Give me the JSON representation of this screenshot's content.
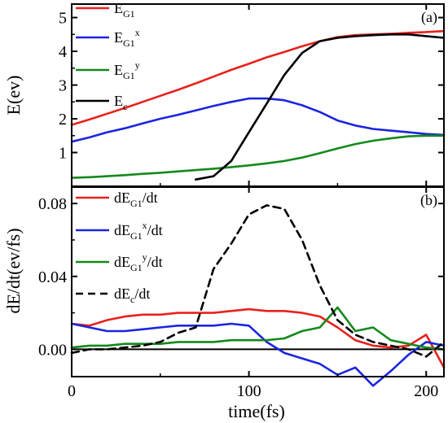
{
  "chart_data": [
    {
      "type": "line",
      "panel_label": "(a)",
      "ylabel": "E(ev)",
      "xlim": [
        0,
        210
      ],
      "ylim": [
        0,
        5.4
      ],
      "yticks": [
        1,
        2,
        3,
        4,
        5
      ],
      "xticks": [
        0,
        100,
        200
      ],
      "x": [
        0,
        10,
        20,
        30,
        40,
        50,
        60,
        70,
        80,
        90,
        100,
        110,
        120,
        130,
        140,
        150,
        160,
        170,
        180,
        190,
        200,
        210
      ],
      "series": [
        {
          "name": "E_G1",
          "label_main": "E",
          "label_sub": "G1",
          "label_sup": "",
          "color": "#e8211c",
          "dash": "",
          "values": [
            1.82,
            1.98,
            2.15,
            2.32,
            2.5,
            2.68,
            2.86,
            3.05,
            3.25,
            3.45,
            3.63,
            3.82,
            3.98,
            4.15,
            4.3,
            4.42,
            4.48,
            4.5,
            4.52,
            4.55,
            4.57,
            4.6
          ]
        },
        {
          "name": "E_G1^x",
          "label_main": "E",
          "label_sub": "G1",
          "label_sup": "x",
          "color": "#1b25e0",
          "dash": "",
          "values": [
            1.32,
            1.45,
            1.6,
            1.72,
            1.86,
            2.0,
            2.12,
            2.25,
            2.38,
            2.5,
            2.6,
            2.6,
            2.55,
            2.4,
            2.2,
            1.95,
            1.8,
            1.7,
            1.65,
            1.6,
            1.55,
            1.52
          ]
        },
        {
          "name": "E_G1^y",
          "label_main": "E",
          "label_sub": "G1",
          "label_sup": "y",
          "color": "#14891c",
          "dash": "",
          "values": [
            0.25,
            0.27,
            0.3,
            0.33,
            0.37,
            0.4,
            0.44,
            0.48,
            0.52,
            0.57,
            0.62,
            0.68,
            0.75,
            0.85,
            0.98,
            1.12,
            1.25,
            1.35,
            1.42,
            1.48,
            1.5,
            1.5
          ]
        },
        {
          "name": "E_c",
          "label_main": "E",
          "label_sub": "c",
          "label_sup": "",
          "color": "#000000",
          "dash": "",
          "values": [
            null,
            null,
            null,
            null,
            null,
            null,
            null,
            0.2,
            0.3,
            0.75,
            1.6,
            2.45,
            3.3,
            3.95,
            4.3,
            4.4,
            4.45,
            4.48,
            4.5,
            4.5,
            4.45,
            4.4
          ]
        }
      ]
    },
    {
      "type": "line",
      "panel_label": "(b)",
      "ylabel": "dE/dt(ev/fs)",
      "xlabel": "time(fs)",
      "xlim": [
        0,
        210
      ],
      "ylim": [
        -0.015,
        0.089
      ],
      "yticks": [
        0.0,
        0.04,
        0.08
      ],
      "ytick_labels": [
        "0.00",
        "0.04",
        "0.08"
      ],
      "xticks": [
        0,
        100,
        200
      ],
      "zero_line": true,
      "x": [
        0,
        10,
        20,
        30,
        40,
        50,
        60,
        70,
        80,
        90,
        100,
        110,
        120,
        130,
        140,
        150,
        160,
        170,
        180,
        190,
        200,
        210
      ],
      "series": [
        {
          "name": "dE_G1/dt",
          "label_main": "dE",
          "label_sub": "G1",
          "label_sup": "",
          "label_tail": "/dt",
          "color": "#e8211c",
          "dash": "",
          "values": [
            0.014,
            0.013,
            0.016,
            0.018,
            0.019,
            0.019,
            0.02,
            0.02,
            0.02,
            0.021,
            0.022,
            0.021,
            0.021,
            0.02,
            0.018,
            0.012,
            0.005,
            0.002,
            0.001,
            0.002,
            0.008,
            -0.01
          ]
        },
        {
          "name": "dE_G1^x/dt",
          "label_main": "dE",
          "label_sub": "G1",
          "label_sup": "x",
          "label_tail": "/dt",
          "color": "#1b25e0",
          "dash": "",
          "values": [
            0.014,
            0.012,
            0.01,
            0.01,
            0.011,
            0.012,
            0.013,
            0.013,
            0.013,
            0.014,
            0.013,
            0.004,
            -0.002,
            -0.005,
            -0.008,
            -0.014,
            -0.01,
            -0.02,
            -0.012,
            -0.003,
            0.004,
            0.002
          ]
        },
        {
          "name": "dE_G1^y/dt",
          "label_main": "dE",
          "label_sub": "G1",
          "label_sup": "y",
          "label_tail": "/dt",
          "color": "#14891c",
          "dash": "",
          "values": [
            0.001,
            0.002,
            0.002,
            0.003,
            0.003,
            0.003,
            0.004,
            0.004,
            0.004,
            0.005,
            0.005,
            0.005,
            0.006,
            0.01,
            0.012,
            0.023,
            0.01,
            0.012,
            0.005,
            0.003,
            0.001,
            0.0
          ]
        },
        {
          "name": "dE_c/dt",
          "label_main": "dE",
          "label_sub": "c",
          "label_sup": "",
          "label_tail": "/dt",
          "color": "#000000",
          "dash": "9,6",
          "values": [
            -0.002,
            0.0,
            0.0,
            0.001,
            0.002,
            0.004,
            0.009,
            0.012,
            0.044,
            0.058,
            0.074,
            0.079,
            0.077,
            0.06,
            0.035,
            0.016,
            0.008,
            0.004,
            0.002,
            0.0,
            -0.004,
            0.004
          ]
        }
      ]
    }
  ]
}
